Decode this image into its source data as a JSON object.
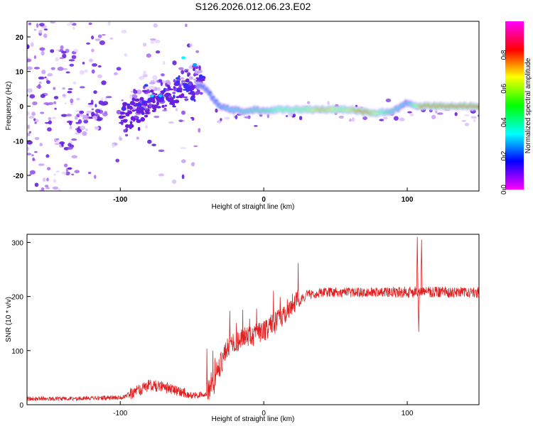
{
  "figure_title": "S126.2026.012.06.23.E02",
  "chart_data": [
    {
      "type": "heatmap",
      "xlabel": "Height of straight line (km)",
      "ylabel": "Frequency (Hz)",
      "xlim": [
        -165,
        150
      ],
      "ylim": [
        -24.5,
        24.5
      ],
      "xticks": [
        -100,
        0,
        100
      ],
      "yticks": [
        -20,
        -10,
        0,
        10,
        20
      ],
      "colorbar": {
        "label": "Normalized spectral amplitude",
        "range": [
          0,
          1
        ],
        "ticks": [
          0.0,
          0.2,
          0.4,
          0.6,
          0.8
        ],
        "stops": [
          "#ff00ff",
          "#ff0000",
          "#ffff00",
          "#00ff00",
          "#00ffff",
          "#0000ff",
          "#ff00ff"
        ]
      },
      "ridge": {
        "description_points": [
          [
            -45,
            6
          ],
          [
            -40,
            5
          ],
          [
            -35,
            2
          ],
          [
            -30,
            0
          ],
          [
            -22,
            -1
          ],
          [
            -15,
            -1.5
          ],
          [
            -5,
            -1
          ],
          [
            0,
            -1.5
          ],
          [
            10,
            -1
          ],
          [
            20,
            -1
          ],
          [
            40,
            -1
          ],
          [
            60,
            -1
          ],
          [
            75,
            -2
          ],
          [
            90,
            -1.5
          ],
          [
            100,
            1
          ],
          [
            105,
            0
          ],
          [
            150,
            0
          ]
        ],
        "amplitude_points": [
          [
            -45,
            0.25
          ],
          [
            -30,
            0.3
          ],
          [
            -15,
            0.4
          ],
          [
            0,
            0.45
          ],
          [
            10,
            0.55
          ],
          [
            30,
            0.6
          ],
          [
            40,
            0.75
          ],
          [
            55,
            0.6
          ],
          [
            70,
            0.85
          ],
          [
            85,
            0.5
          ],
          [
            100,
            0.3
          ],
          [
            110,
            0.8
          ],
          [
            150,
            0.85
          ]
        ]
      }
    },
    {
      "type": "line",
      "color": "#e02020",
      "xlabel": "Height of straight line (km)",
      "ylabel": "SNR (10 * v/v)",
      "xlim": [
        -165,
        150
      ],
      "ylim": [
        0,
        315
      ],
      "xticks": [
        -100,
        0,
        100
      ],
      "yticks": [
        0,
        100,
        200,
        300
      ],
      "series": [
        {
          "name": "SNR",
          "points": [
            [
              -165,
              10
            ],
            [
              -130,
              10
            ],
            [
              -100,
              12
            ],
            [
              -90,
              20
            ],
            [
              -80,
              32
            ],
            [
              -70,
              30
            ],
            [
              -60,
              20
            ],
            [
              -50,
              15
            ],
            [
              -40,
              18
            ],
            [
              -35,
              30
            ],
            [
              -30,
              70
            ],
            [
              -25,
              100
            ],
            [
              -20,
              110
            ],
            [
              -10,
              120
            ],
            [
              0,
              130
            ],
            [
              10,
              150
            ],
            [
              20,
              180
            ],
            [
              30,
              200
            ],
            [
              40,
              205
            ],
            [
              60,
              205
            ],
            [
              80,
              205
            ],
            [
              100,
              205
            ],
            [
              120,
              205
            ],
            [
              150,
              205
            ]
          ],
          "spikes": [
            {
              "x": 107,
              "value": 310
            },
            {
              "x": 110,
              "value": 305
            },
            {
              "x": 108,
              "value": 135
            }
          ]
        }
      ]
    }
  ]
}
